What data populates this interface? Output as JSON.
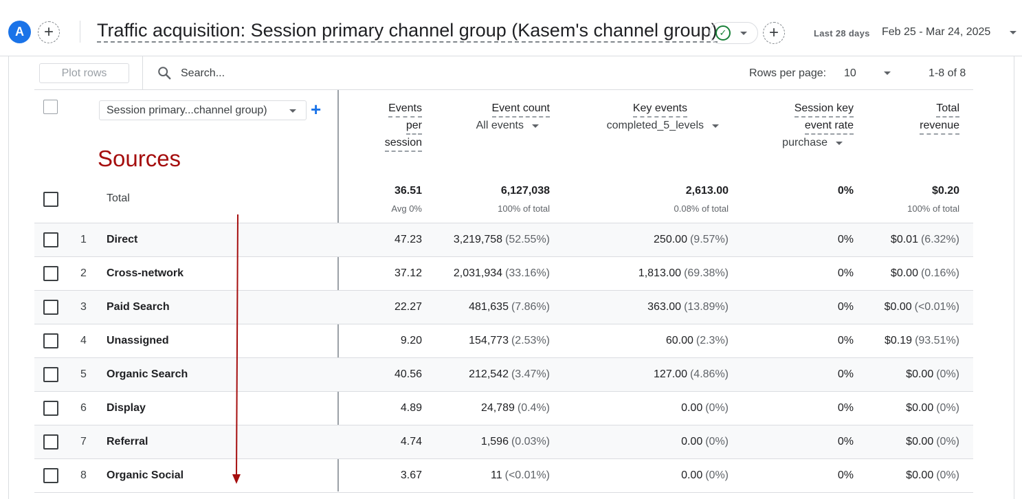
{
  "header": {
    "avatar_letter": "A",
    "title": "Traffic acquisition: Session primary channel group (Kasem's channel group)",
    "date_label": "Last 28 days",
    "date_range": "Feb 25 - Mar 24, 2025"
  },
  "toolbar": {
    "plot_rows": "Plot rows",
    "search_placeholder": "Search...",
    "rows_per_page_label": "Rows per page:",
    "rows_per_page_value": "10",
    "page_info": "1-8 of 8"
  },
  "dimension": {
    "selector": "Session primary...channel group)",
    "annotation": "Sources"
  },
  "columns": {
    "events_per_session": [
      "Events",
      "per",
      "session"
    ],
    "event_count": {
      "label": "Event count",
      "filter": "All events"
    },
    "key_events": {
      "label": "Key events",
      "filter": "completed_5_levels"
    },
    "session_key_event_rate": {
      "label": [
        "Session key",
        "event rate"
      ],
      "filter": "purchase"
    },
    "total_revenue": [
      "Total",
      "revenue"
    ]
  },
  "totals": {
    "label": "Total",
    "events_per_session": "36.51",
    "events_per_session_sub": "Avg 0%",
    "event_count": "6,127,038",
    "event_count_sub": "100% of total",
    "key_events": "2,613.00",
    "key_events_sub": "0.08% of total",
    "rate": "0%",
    "revenue": "$0.20",
    "revenue_sub": "100% of total"
  },
  "rows": [
    {
      "n": "1",
      "name": "Direct",
      "eps": "47.23",
      "ec": "3,219,758",
      "ec_pct": "(52.55%)",
      "ke": "250.00",
      "ke_pct": "(9.57%)",
      "rate": "0%",
      "rev": "$0.01",
      "rev_pct": "(6.32%)"
    },
    {
      "n": "2",
      "name": "Cross-network",
      "eps": "37.12",
      "ec": "2,031,934",
      "ec_pct": "(33.16%)",
      "ke": "1,813.00",
      "ke_pct": "(69.38%)",
      "rate": "0%",
      "rev": "$0.00",
      "rev_pct": "(0.16%)"
    },
    {
      "n": "3",
      "name": "Paid Search",
      "eps": "22.27",
      "ec": "481,635",
      "ec_pct": "(7.86%)",
      "ke": "363.00",
      "ke_pct": "(13.89%)",
      "rate": "0%",
      "rev": "$0.00",
      "rev_pct": "(<0.01%)"
    },
    {
      "n": "4",
      "name": "Unassigned",
      "eps": "9.20",
      "ec": "154,773",
      "ec_pct": "(2.53%)",
      "ke": "60.00",
      "ke_pct": "(2.3%)",
      "rate": "0%",
      "rev": "$0.19",
      "rev_pct": "(93.51%)"
    },
    {
      "n": "5",
      "name": "Organic Search",
      "eps": "40.56",
      "ec": "212,542",
      "ec_pct": "(3.47%)",
      "ke": "127.00",
      "ke_pct": "(4.86%)",
      "rate": "0%",
      "rev": "$0.00",
      "rev_pct": "(0%)"
    },
    {
      "n": "6",
      "name": "Display",
      "eps": "4.89",
      "ec": "24,789",
      "ec_pct": "(0.4%)",
      "ke": "0.00",
      "ke_pct": "(0%)",
      "rate": "0%",
      "rev": "$0.00",
      "rev_pct": "(0%)"
    },
    {
      "n": "7",
      "name": "Referral",
      "eps": "4.74",
      "ec": "1,596",
      "ec_pct": "(0.03%)",
      "ke": "0.00",
      "ke_pct": "(0%)",
      "rate": "0%",
      "rev": "$0.00",
      "rev_pct": "(0%)"
    },
    {
      "n": "8",
      "name": "Organic Social",
      "eps": "3.67",
      "ec": "11",
      "ec_pct": "(<0.01%)",
      "ke": "0.00",
      "ke_pct": "(0%)",
      "rate": "0%",
      "rev": "$0.00",
      "rev_pct": "(0%)"
    }
  ],
  "colors": {
    "accent": "#1a73e8",
    "annotation": "#a50e0e",
    "success": "#188038"
  }
}
